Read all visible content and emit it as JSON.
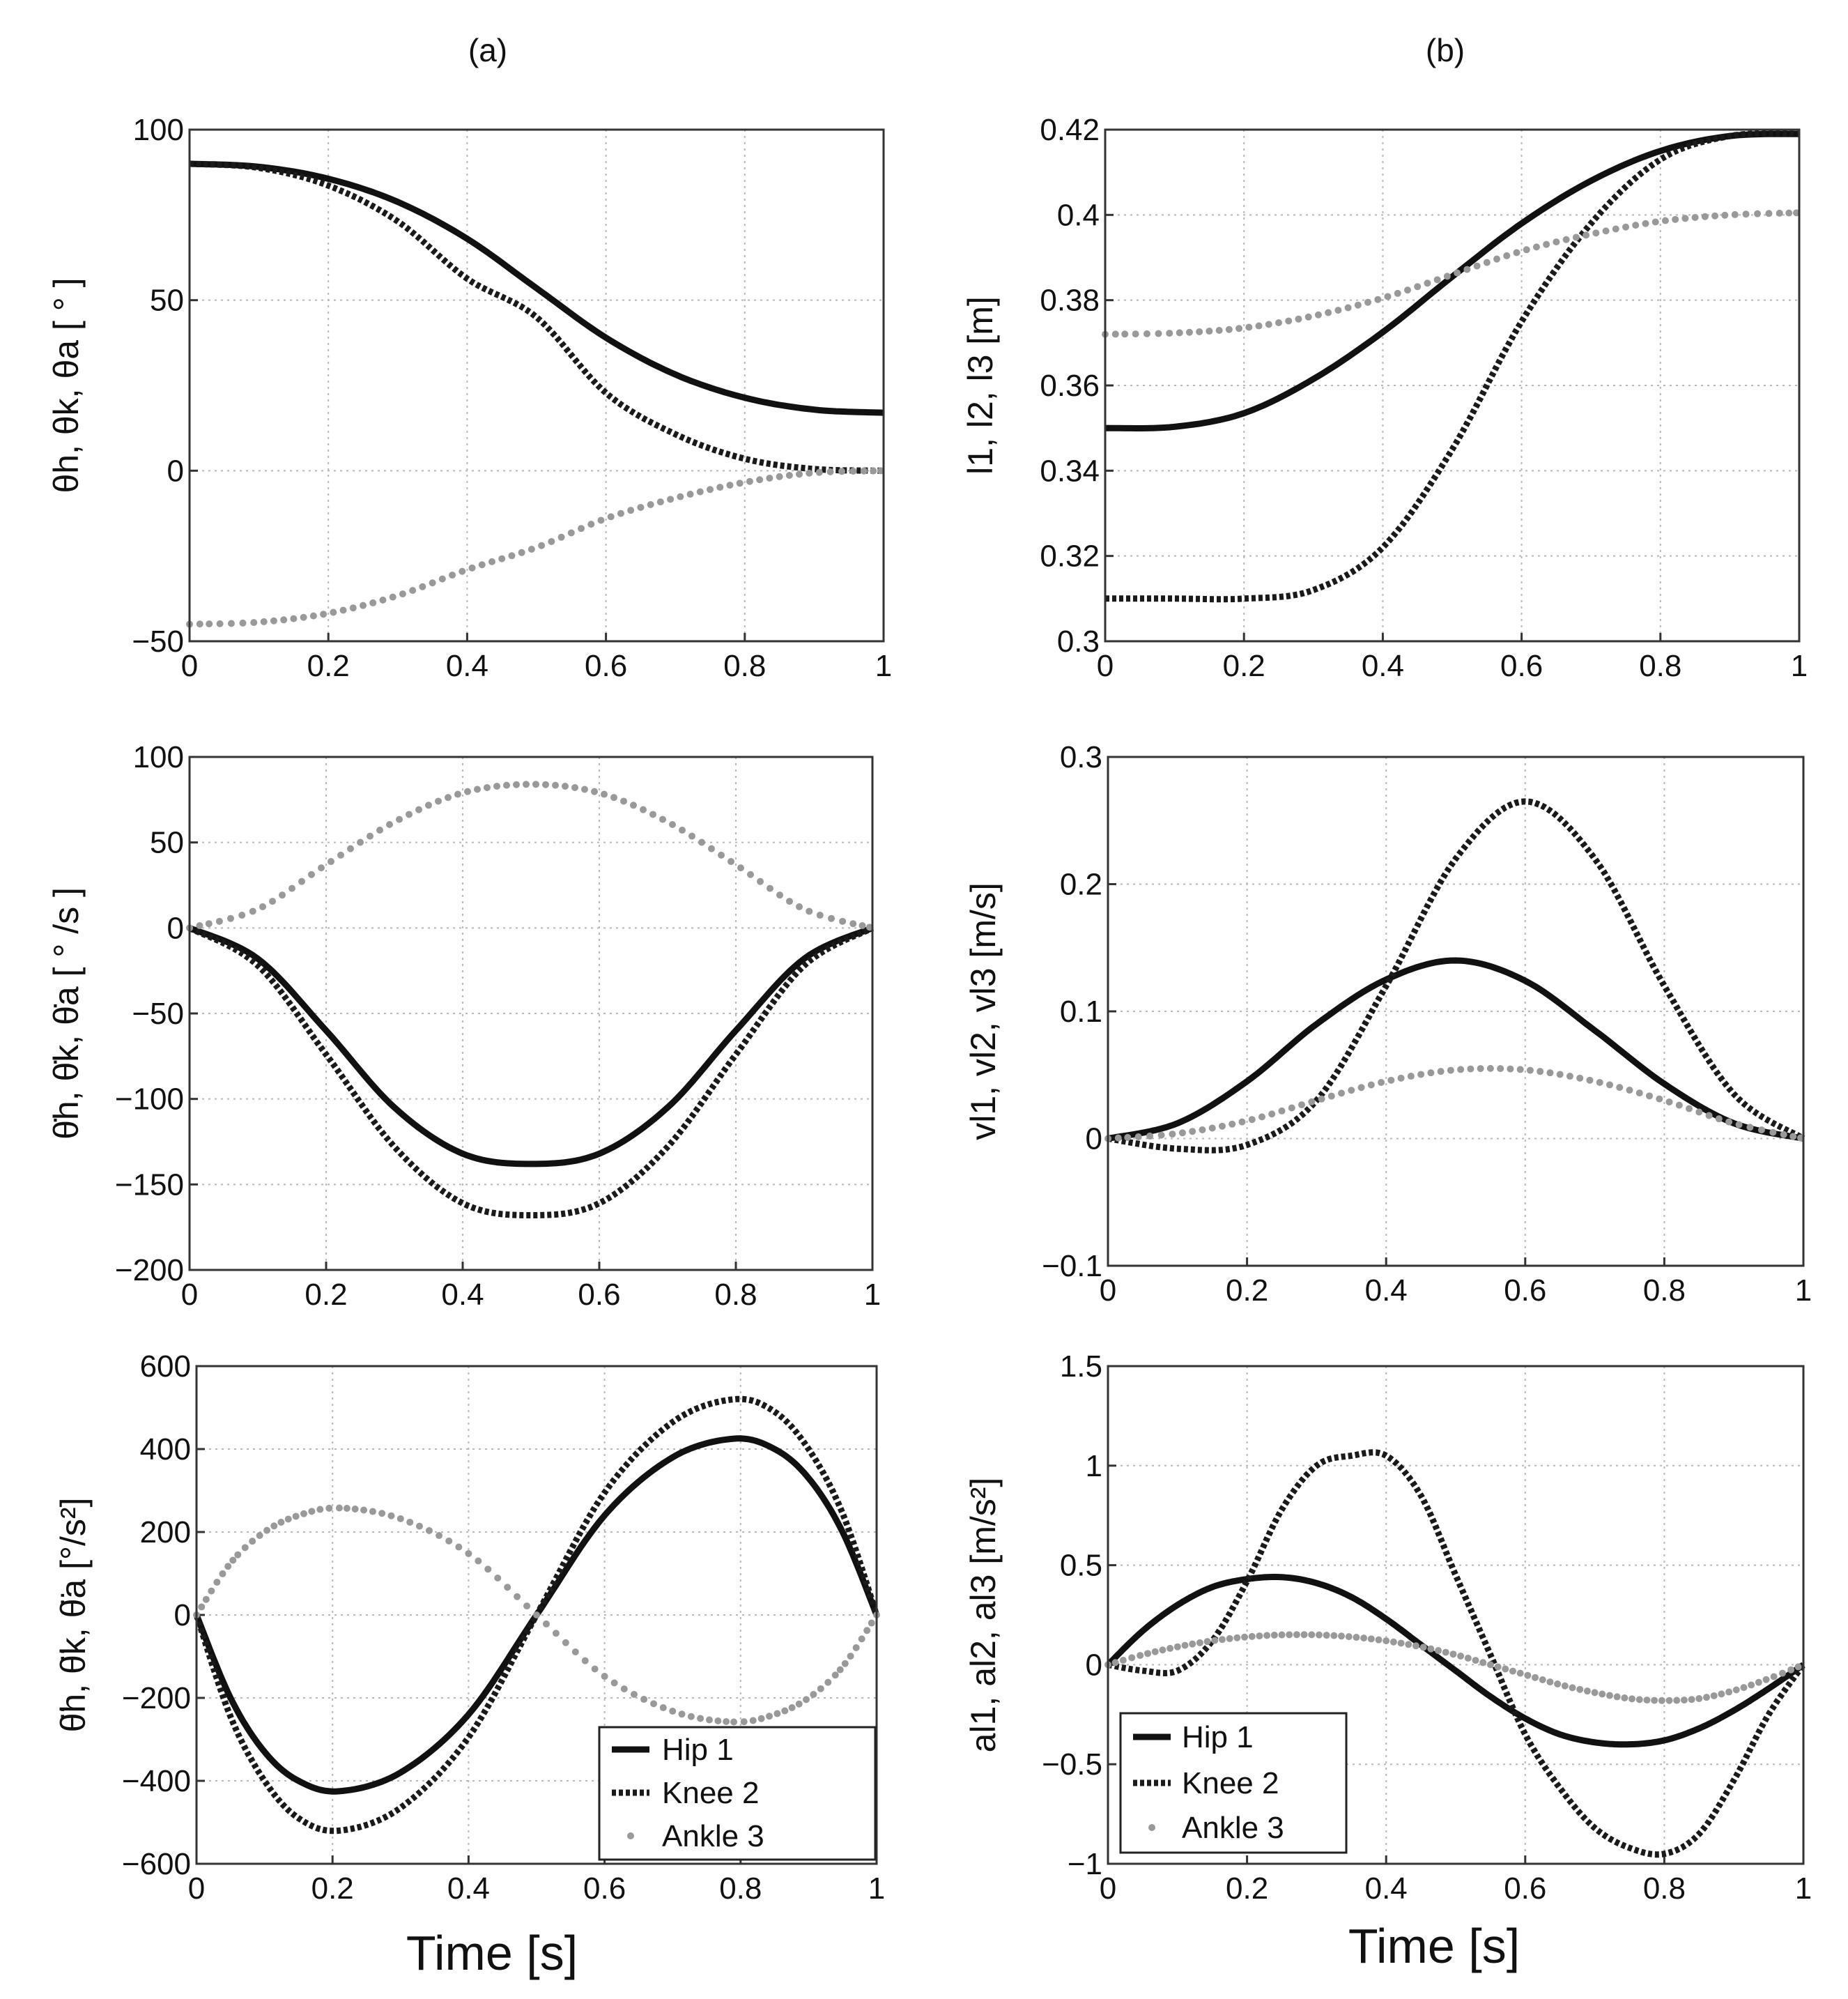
{
  "column_labels": [
    "(a)",
    "(b)"
  ],
  "x_axis_label": "Time [s]",
  "legend": [
    {
      "label": "Hip 1",
      "style": "solid"
    },
    {
      "label": "Knee 2",
      "style": "dotted"
    },
    {
      "label": "Ankle 3",
      "style": "gray-dots"
    }
  ],
  "colors": {
    "hip": "#111111",
    "knee": "#1a1a1a",
    "ankle": "#999999",
    "grid": "#b8b8b8"
  },
  "chart_data": [
    {
      "id": "a1",
      "type": "line",
      "ylabel": "θh, θk, θa [ ° ]",
      "xlim": [
        0,
        1
      ],
      "ylim": [
        -50,
        100
      ],
      "xticks": [
        "0",
        "0.2",
        "0.4",
        "0.6",
        "0.8",
        "1"
      ],
      "yticks": [
        {
          "v": 100,
          "l": "100"
        },
        {
          "v": 50,
          "l": "50"
        },
        {
          "v": 0,
          "l": "0"
        },
        {
          "v": -50,
          "l": "−50"
        }
      ],
      "x": [
        0,
        0.1,
        0.2,
        0.3,
        0.4,
        0.5,
        0.6,
        0.7,
        0.8,
        0.9,
        1.0
      ],
      "series": [
        {
          "name": "Hip 1",
          "values": [
            90,
            89.1,
            85.6,
            78.8,
            68.0,
            53.5,
            39.0,
            28.2,
            21.4,
            17.9,
            17.0
          ]
        },
        {
          "name": "Knee 2",
          "values": [
            90,
            88.8,
            83.6,
            73.1,
            56.3,
            45.0,
            22.8,
            10.7,
            3.5,
            0.5,
            0
          ]
        },
        {
          "name": "Ankle 3",
          "values": [
            -45,
            -44.4,
            -41.8,
            -36.6,
            -29.0,
            -22.5,
            -14.0,
            -8.0,
            -3.4,
            -0.6,
            0
          ]
        }
      ]
    },
    {
      "id": "b1",
      "type": "line",
      "ylabel": "l1, l2, l3 [m]",
      "xlim": [
        0,
        1
      ],
      "ylim": [
        0.3,
        0.42
      ],
      "xticks": [
        "0",
        "0.2",
        "0.4",
        "0.6",
        "0.8",
        "1"
      ],
      "yticks": [
        {
          "v": 0.42,
          "l": "0.42"
        },
        {
          "v": 0.4,
          "l": "0.4"
        },
        {
          "v": 0.38,
          "l": "0.38"
        },
        {
          "v": 0.36,
          "l": "0.36"
        },
        {
          "v": 0.34,
          "l": "0.34"
        },
        {
          "v": 0.32,
          "l": "0.32"
        },
        {
          "v": 0.3,
          "l": "0.3"
        }
      ],
      "x": [
        0,
        0.1,
        0.2,
        0.3,
        0.4,
        0.5,
        0.6,
        0.7,
        0.8,
        0.9,
        1.0
      ],
      "series": [
        {
          "name": "Hip 1",
          "values": [
            0.35,
            0.3503,
            0.3535,
            0.3615,
            0.3725,
            0.3855,
            0.398,
            0.408,
            0.415,
            0.4185,
            0.419
          ]
        },
        {
          "name": "Knee 2",
          "values": [
            0.31,
            0.31,
            0.31,
            0.312,
            0.322,
            0.345,
            0.375,
            0.398,
            0.413,
            0.4185,
            0.419
          ]
        },
        {
          "name": "Ankle 3",
          "values": [
            0.372,
            0.3723,
            0.3735,
            0.3763,
            0.3805,
            0.386,
            0.3915,
            0.3955,
            0.3985,
            0.4,
            0.4005
          ]
        }
      ]
    },
    {
      "id": "a2",
      "type": "line",
      "ylabel": "θ̇h, θ̇k, θ̇a [ ° /s ]",
      "xlim": [
        0,
        1
      ],
      "ylim": [
        -200,
        100
      ],
      "xticks": [
        "0",
        "0.2",
        "0.4",
        "0.6",
        "0.8",
        "1"
      ],
      "yticks": [
        {
          "v": 100,
          "l": "100"
        },
        {
          "v": 50,
          "l": "50"
        },
        {
          "v": 0,
          "l": "0"
        },
        {
          "v": -50,
          "l": "−50"
        },
        {
          "v": -100,
          "l": "−100"
        },
        {
          "v": -150,
          "l": "−150"
        },
        {
          "v": -200,
          "l": "−200"
        }
      ],
      "x": [
        0,
        0.1,
        0.2,
        0.3,
        0.4,
        0.5,
        0.6,
        0.7,
        0.8,
        0.9,
        1.0
      ],
      "series": [
        {
          "name": "Hip 1",
          "values": [
            0,
            -18,
            -60,
            -105,
            -132,
            -138,
            -132,
            -105,
            -60,
            -18,
            0
          ]
        },
        {
          "name": "Knee 2",
          "values": [
            0,
            -22,
            -74,
            -128,
            -161,
            -168,
            -161,
            -128,
            -74,
            -22,
            0
          ]
        },
        {
          "name": "Ankle 3",
          "values": [
            0,
            11,
            37,
            62,
            79,
            84,
            79,
            62,
            37,
            11,
            0
          ]
        }
      ]
    },
    {
      "id": "b2",
      "type": "line",
      "ylabel": "vl1, vl2, vl3 [m/s]",
      "xlim": [
        0,
        1
      ],
      "ylim": [
        -0.1,
        0.3
      ],
      "xticks": [
        "0",
        "0.2",
        "0.4",
        "0.6",
        "0.8",
        "1"
      ],
      "yticks": [
        {
          "v": 0.3,
          "l": "0.3"
        },
        {
          "v": 0.2,
          "l": "0.2"
        },
        {
          "v": 0.1,
          "l": "0.1"
        },
        {
          "v": 0,
          "l": "0"
        },
        {
          "v": -0.1,
          "l": "−0.1"
        }
      ],
      "x": [
        0,
        0.1,
        0.2,
        0.3,
        0.4,
        0.5,
        0.6,
        0.7,
        0.8,
        0.9,
        1.0
      ],
      "series": [
        {
          "name": "Hip 1",
          "values": [
            0,
            0.012,
            0.045,
            0.09,
            0.125,
            0.14,
            0.124,
            0.085,
            0.043,
            0.012,
            0
          ]
        },
        {
          "name": "Knee 2",
          "values": [
            0,
            -0.008,
            -0.005,
            0.03,
            0.12,
            0.22,
            0.265,
            0.22,
            0.12,
            0.035,
            0
          ]
        },
        {
          "name": "Ankle 3",
          "values": [
            0,
            0.004,
            0.014,
            0.03,
            0.045,
            0.054,
            0.054,
            0.045,
            0.03,
            0.012,
            0
          ]
        }
      ]
    },
    {
      "id": "a3",
      "type": "line",
      "ylabel": "θ̈h, θ̈k, θ̈a [°/s²]",
      "xlim": [
        0,
        1
      ],
      "ylim": [
        -600,
        600
      ],
      "xticks": [
        "0",
        "0.2",
        "0.4",
        "0.6",
        "0.8",
        "1"
      ],
      "yticks": [
        {
          "v": 600,
          "l": "600"
        },
        {
          "v": 400,
          "l": "400"
        },
        {
          "v": 200,
          "l": "200"
        },
        {
          "v": 0,
          "l": "0"
        },
        {
          "v": -200,
          "l": "−200"
        },
        {
          "v": -400,
          "l": "−400"
        },
        {
          "v": -600,
          "l": "−600"
        }
      ],
      "x": [
        0,
        0.05,
        0.1,
        0.15,
        0.21,
        0.3,
        0.4,
        0.5,
        0.6,
        0.7,
        0.79,
        0.85,
        0.9,
        0.95,
        1.0
      ],
      "series": [
        {
          "name": "Hip 1",
          "values": [
            0,
            -200,
            -330,
            -400,
            -425,
            -380,
            -240,
            0,
            240,
            380,
            425,
            400,
            330,
            200,
            0
          ]
        },
        {
          "name": "Knee 2",
          "values": [
            0,
            -245,
            -400,
            -490,
            -520,
            -465,
            -295,
            0,
            295,
            465,
            520,
            490,
            400,
            245,
            0
          ]
        },
        {
          "name": "Ankle 3",
          "values": [
            0,
            125,
            200,
            240,
            258,
            232,
            148,
            0,
            -148,
            -232,
            -258,
            -240,
            -200,
            -125,
            0
          ]
        }
      ]
    },
    {
      "id": "b3",
      "type": "line",
      "ylabel": "al1, al2, al3 [m/s²]",
      "xlim": [
        0,
        1
      ],
      "ylim": [
        -1,
        1.5
      ],
      "xticks": [
        "0",
        "0.2",
        "0.4",
        "0.6",
        "0.8",
        "1"
      ],
      "yticks": [
        {
          "v": 1.5,
          "l": "1.5"
        },
        {
          "v": 1,
          "l": "1"
        },
        {
          "v": 0.5,
          "l": "0.5"
        },
        {
          "v": 0,
          "l": "0"
        },
        {
          "v": -0.5,
          "l": "−0.5"
        },
        {
          "v": -1,
          "l": "−1"
        }
      ],
      "x": [
        0,
        0.05,
        0.1,
        0.15,
        0.2,
        0.25,
        0.3,
        0.35,
        0.4,
        0.45,
        0.5,
        0.55,
        0.6,
        0.65,
        0.7,
        0.75,
        0.8,
        0.85,
        0.9,
        0.95,
        1.0
      ],
      "series": [
        {
          "name": "Hip 1",
          "values": [
            0,
            0.17,
            0.3,
            0.39,
            0.43,
            0.44,
            0.41,
            0.34,
            0.23,
            0.1,
            -0.03,
            -0.16,
            -0.27,
            -0.35,
            -0.39,
            -0.4,
            -0.38,
            -0.32,
            -0.23,
            -0.12,
            0
          ]
        },
        {
          "name": "Knee 2",
          "values": [
            0,
            -0.03,
            -0.03,
            0.12,
            0.42,
            0.78,
            1.0,
            1.05,
            1.05,
            0.85,
            0.45,
            0.05,
            -0.35,
            -0.62,
            -0.82,
            -0.92,
            -0.95,
            -0.85,
            -0.58,
            -0.25,
            0
          ]
        },
        {
          "name": "Ankle 3",
          "values": [
            0,
            0.05,
            0.09,
            0.12,
            0.14,
            0.15,
            0.15,
            0.14,
            0.12,
            0.09,
            0.05,
            0.0,
            -0.05,
            -0.1,
            -0.14,
            -0.17,
            -0.18,
            -0.17,
            -0.13,
            -0.07,
            0
          ]
        }
      ]
    }
  ]
}
